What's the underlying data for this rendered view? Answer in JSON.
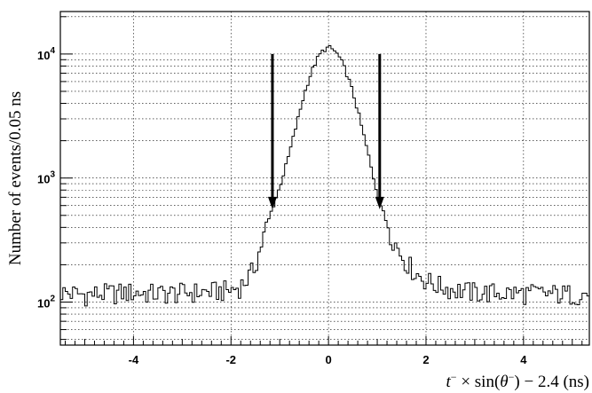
{
  "chart_data": {
    "type": "line",
    "style": "histogram-step",
    "xlabel_parts": {
      "t": "t",
      "sup1": "−",
      "mid": " × sin(",
      "theta": "θ",
      "sup2": "−",
      "end": ") − 2.4 (ns)"
    },
    "ylabel": "Number of events/0.05 ns",
    "xlim": [
      -5.5,
      5.35
    ],
    "ylim": [
      45,
      22000
    ],
    "yscale": "log",
    "grid": true,
    "x_ticks": [
      {
        "value": -4,
        "label": "-4"
      },
      {
        "value": -2,
        "label": "-2"
      },
      {
        "value": 0,
        "label": "0"
      },
      {
        "value": 2,
        "label": "2"
      },
      {
        "value": 4,
        "label": "4"
      }
    ],
    "y_ticks": [
      {
        "value": 100,
        "base": "10",
        "exp": "2"
      },
      {
        "value": 1000,
        "base": "10",
        "exp": "3"
      },
      {
        "value": 10000,
        "base": "10",
        "exp": "4"
      }
    ],
    "bin_width": 0.05,
    "series": [
      {
        "x": [
          -5.5,
          -5.0,
          -4.5,
          -4.0,
          -3.5,
          -3.0,
          -2.5,
          -2.0,
          -1.8,
          -1.6,
          -1.5,
          -1.4,
          -1.3,
          -1.2,
          -1.1,
          -1.0,
          -0.9,
          -0.8,
          -0.7,
          -0.6,
          -0.5,
          -0.4,
          -0.3,
          -0.2,
          -0.1,
          0.0,
          0.1,
          0.2,
          0.3,
          0.4,
          0.5,
          0.6,
          0.7,
          0.8,
          0.9,
          1.0,
          1.1,
          1.2,
          1.3,
          1.4,
          1.5,
          1.6,
          1.8,
          2.0,
          2.2,
          2.5,
          3.0,
          3.5,
          4.0,
          4.5,
          5.0,
          5.35
        ],
        "values": [
          120,
          115,
          118,
          120,
          117,
          119,
          121,
          125,
          135,
          165,
          200,
          270,
          370,
          500,
          650,
          850,
          1150,
          1600,
          2300,
          3300,
          4700,
          6300,
          8000,
          9600,
          10800,
          11300,
          10800,
          9800,
          8200,
          6500,
          4900,
          3500,
          2400,
          1650,
          1100,
          760,
          560,
          430,
          340,
          280,
          240,
          210,
          170,
          150,
          138,
          128,
          120,
          119,
          118,
          117,
          116,
          116
        ]
      }
    ],
    "annotations": [
      {
        "type": "arrow-down",
        "x": -1.15,
        "y_start": 10000,
        "y_end": 560
      },
      {
        "type": "arrow-down",
        "x": 1.05,
        "y_start": 10000,
        "y_end": 560
      }
    ]
  }
}
